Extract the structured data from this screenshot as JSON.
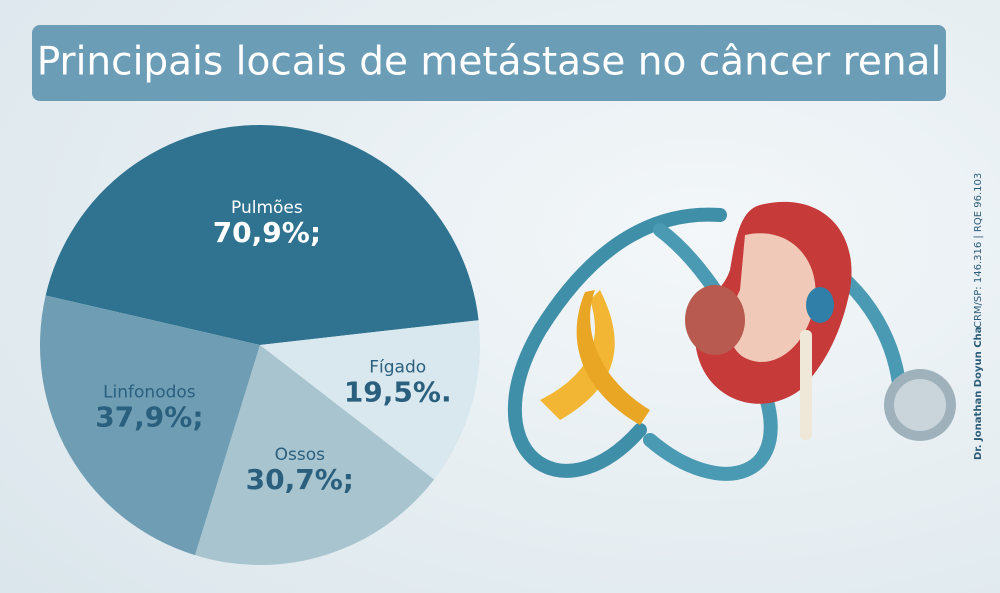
{
  "chart_data": {
    "type": "pie",
    "title": "Principais locais de metástase no câncer renal",
    "categories": [
      "Pulmões",
      "Fígado",
      "Ossos",
      "Linfonodos"
    ],
    "values": [
      70.9,
      19.5,
      30.7,
      37.9
    ],
    "value_labels": [
      "70,9%;",
      "19,5%.",
      "30,7%;",
      "37,9%;"
    ],
    "colors": [
      "#2f7391",
      "#d9e8ee",
      "#a8c4cf",
      "#6f9eb4"
    ]
  },
  "credit": {
    "name": "Dr. Jonathan Doyun Cha",
    "registration": "CRM/SP: 146.316 | RQE 96.103"
  }
}
